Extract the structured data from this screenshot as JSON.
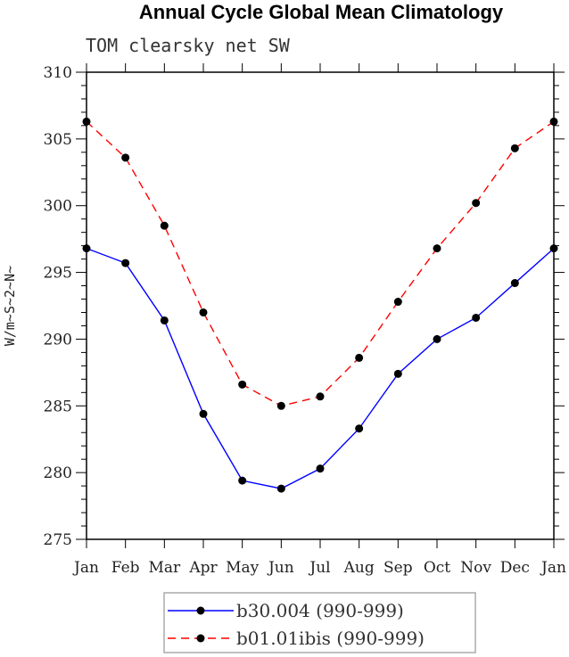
{
  "chart_data": {
    "type": "line",
    "title": "Annual Cycle Global Mean Climatology",
    "subtitle": "TOM clearsky net SW",
    "xlabel": "",
    "ylabel": "W/m~S~2~N~",
    "categories": [
      "Jan",
      "Feb",
      "Mar",
      "Apr",
      "May",
      "Jun",
      "Jul",
      "Aug",
      "Sep",
      "Oct",
      "Nov",
      "Dec",
      "Jan"
    ],
    "ylim": [
      275,
      310
    ],
    "yticks": [
      275,
      280,
      285,
      290,
      295,
      300,
      305,
      310
    ],
    "grid": false,
    "legend_position": "bottom-center",
    "series": [
      {
        "name": "b30.004 (990-999)",
        "color": "#0000ff",
        "dash": "solid",
        "values": [
          296.8,
          295.7,
          291.4,
          284.4,
          279.4,
          278.8,
          280.3,
          283.3,
          287.4,
          290.0,
          291.6,
          294.2,
          296.8
        ]
      },
      {
        "name": "b01.01ibis (990-999)",
        "color": "#ff0000",
        "dash": "dashed",
        "values": [
          306.3,
          303.6,
          298.5,
          292.0,
          286.6,
          285.0,
          285.7,
          288.6,
          292.8,
          296.8,
          300.2,
          304.3,
          306.3
        ]
      }
    ]
  }
}
